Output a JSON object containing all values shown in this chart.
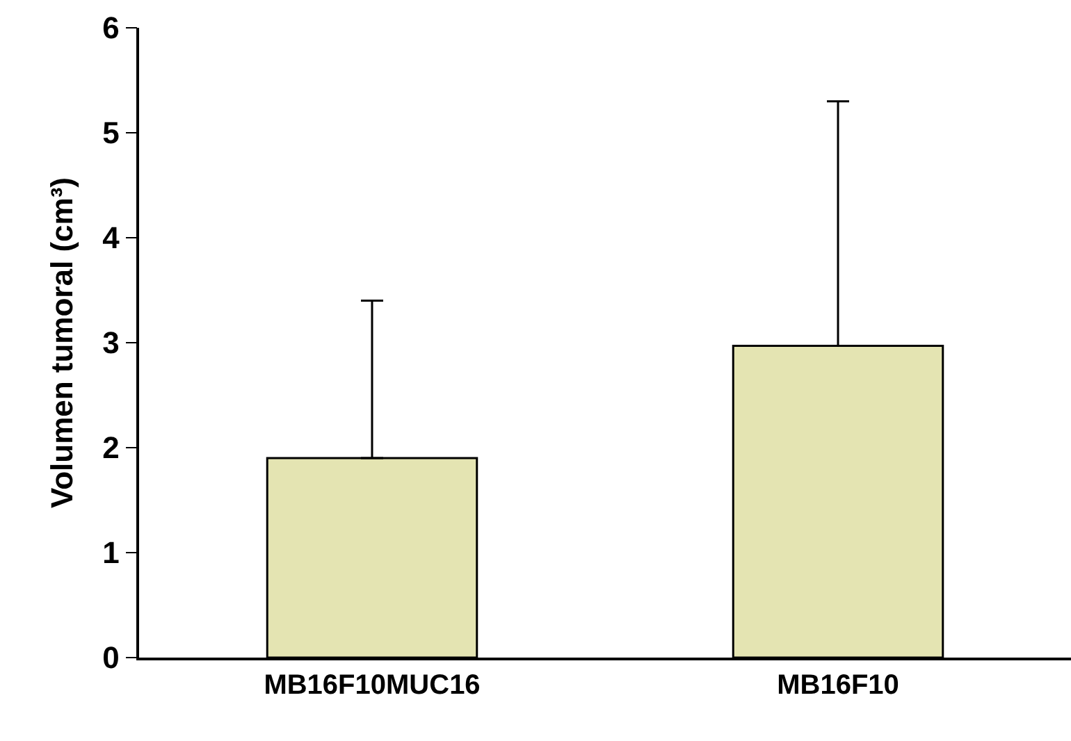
{
  "chart_data": {
    "type": "bar",
    "ylabel": "Volumen tumoral (cm³)",
    "categories": [
      "MB16F10MUC16",
      "MB16F10"
    ],
    "values": [
      1.9,
      2.97
    ],
    "errors": [
      [
        1.9,
        3.4
      ],
      [
        2.97,
        5.3
      ]
    ],
    "color": "#e4e4b2",
    "ylim": [
      0,
      6
    ],
    "yticks": [
      0,
      1,
      2,
      3,
      4,
      5,
      6
    ]
  }
}
